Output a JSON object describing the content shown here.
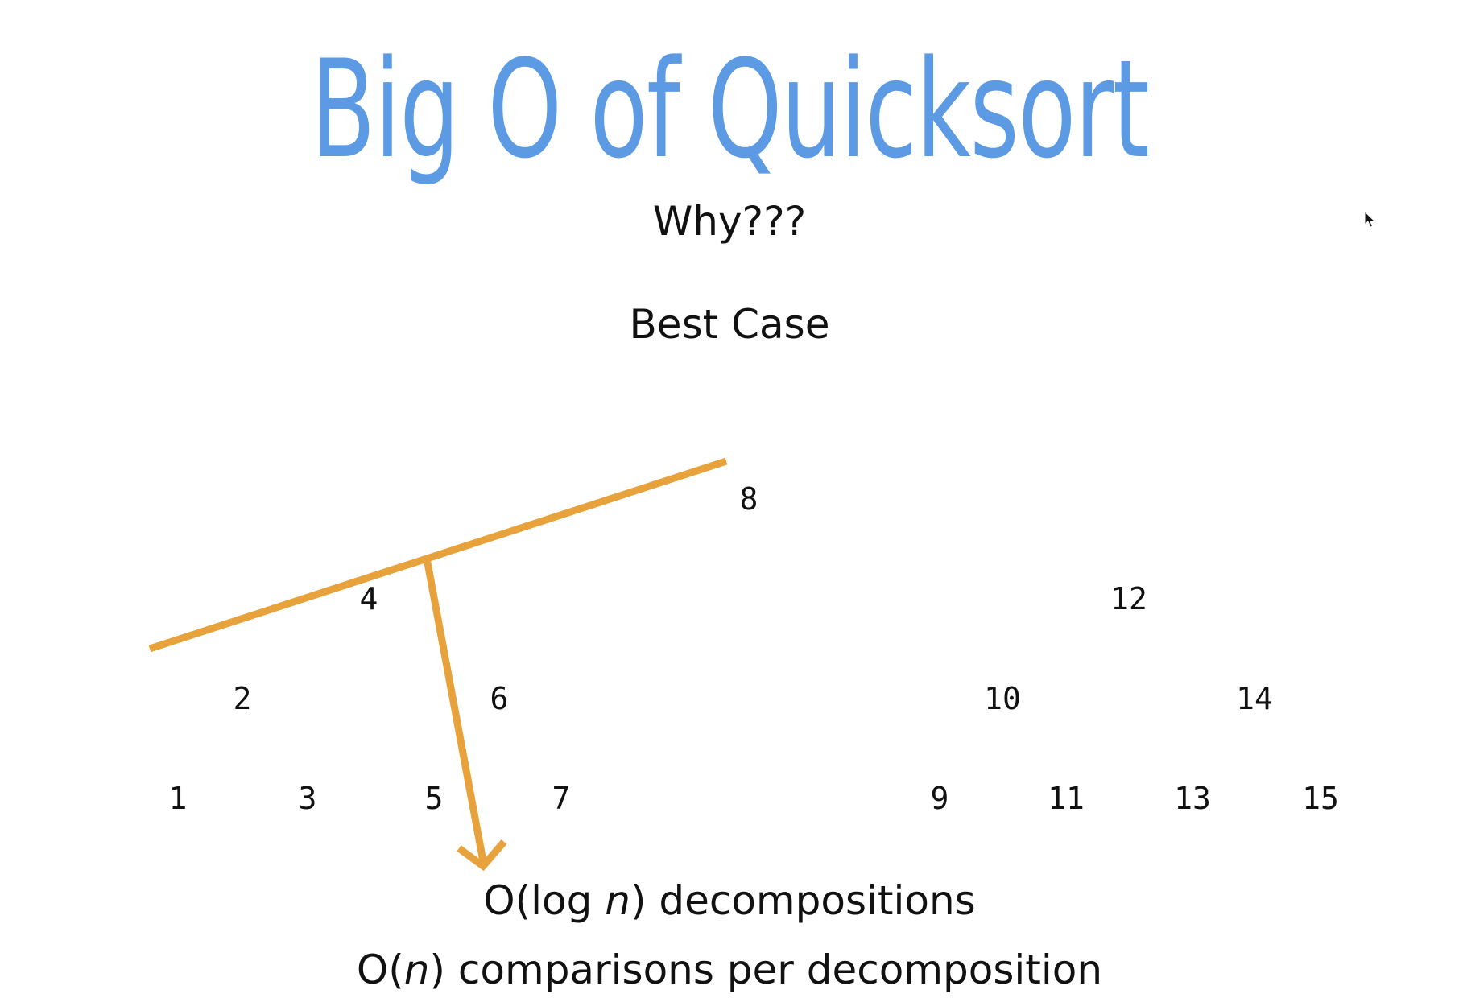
{
  "slide": {
    "title": "Big O of Quicksort",
    "subtitle": "Why???",
    "case_label": "Best Case"
  },
  "tree": {
    "levels": [
      [
        "8"
      ],
      [
        "4",
        "12"
      ],
      [
        "2",
        "6",
        "10",
        "14"
      ],
      [
        "1",
        "3",
        "5",
        "7",
        "9",
        "11",
        "13",
        "15"
      ]
    ]
  },
  "captions": {
    "line1_prefix": "O(log ",
    "line1_var": "n",
    "line1_suffix": ") decompositions",
    "line2_prefix": "O(",
    "line2_var": "n",
    "line2_suffix": ") comparisons per decomposition"
  },
  "colors": {
    "title": "#5c9ae3",
    "annotation": "#e8a23c",
    "text": "#111111"
  },
  "icons": {
    "cursor": "mouse-pointer-icon"
  }
}
